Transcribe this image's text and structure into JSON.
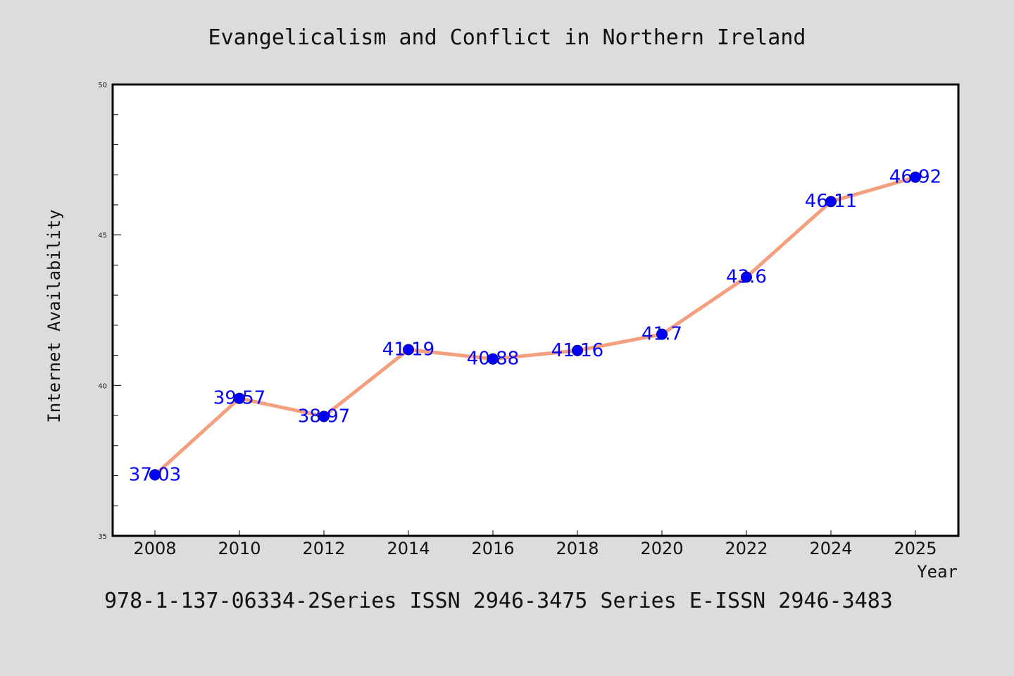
{
  "chart_data": {
    "type": "line",
    "title": "Evangelicalism and Conflict in Northern Ireland",
    "xlabel": "Year",
    "ylabel": "Internet Availability",
    "categories": [
      "2008",
      "2010",
      "2012",
      "2014",
      "2016",
      "2018",
      "2020",
      "2022",
      "2024",
      "2025"
    ],
    "series": [
      {
        "values": [
          37.03,
          39.57,
          38.97,
          41.19,
          40.88,
          41.16,
          41.7,
          43.6,
          46.11,
          46.92
        ],
        "labels": [
          "37.03",
          "39.57",
          "38.97",
          "41.19",
          "40.88",
          "41.16",
          "41.7",
          "43.6",
          "46.11",
          "46.92"
        ]
      }
    ],
    "ylim": [
      35,
      50
    ],
    "y_major_ticks": [
      "35",
      "40",
      "45",
      "50"
    ],
    "y_minor_step": 1,
    "grid": false,
    "colors": {
      "background": "#dcdcdc",
      "plot_background": "#ffffff",
      "line": "#f4a07f",
      "marker": "#0000ff",
      "data_label": "#0000ff"
    }
  },
  "footer": {
    "text": "978-1-137-06334-2Series ISSN 2946-3475 Series E-ISSN 2946-3483"
  }
}
